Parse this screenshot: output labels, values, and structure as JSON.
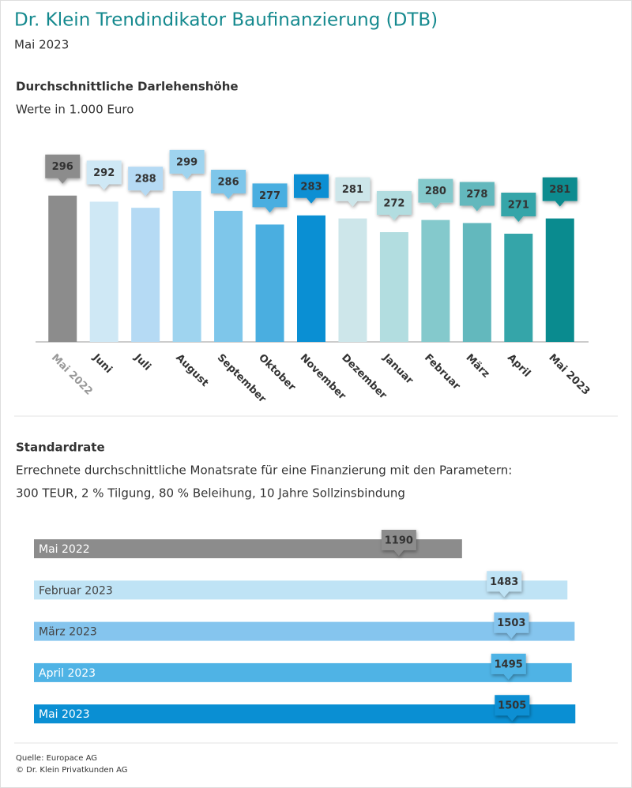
{
  "header": {
    "title": "Dr. Klein Trendindikator Baufinanzierung (DTB)",
    "subtitle": "Mai 2023"
  },
  "chart_data": [
    {
      "type": "bar",
      "title": "Durchschnittliche Darlehenshöhe",
      "subtitle": "Werte in 1.000 Euro",
      "categories": [
        "Mai 2022",
        "Juni",
        "Juli",
        "August",
        "September",
        "Oktober",
        "November",
        "Dezember",
        "Januar",
        "Februar",
        "März",
        "April",
        "Mai 2023"
      ],
      "values": [
        296,
        292,
        288,
        299,
        286,
        277,
        283,
        281,
        272,
        280,
        278,
        271,
        281
      ],
      "colors": [
        "#8c8c8c",
        "#cfe8f5",
        "#b5daf4",
        "#9fd4ef",
        "#7ec6ea",
        "#4aaee0",
        "#0a8fd3",
        "#cde6ea",
        "#b2dde0",
        "#84c9cc",
        "#63b8bd",
        "#35a5a9",
        "#0a8b8f"
      ],
      "ylim": [
        200,
        300
      ]
    },
    {
      "type": "hbar",
      "title": "Standardrate",
      "description": [
        "Errechnete durchschnittliche Monatsrate für eine Finanzierung mit den Parametern:",
        "300 TEUR, 2 % Tilgung, 80 % Beleihung, 10 Jahre Sollzinsbindung"
      ],
      "categories": [
        "Mai 2022",
        "Februar 2023",
        "März 2023",
        "April 2023",
        "Mai 2023"
      ],
      "values": [
        1190,
        1483,
        1503,
        1495,
        1505
      ],
      "colors": [
        "#8c8c8c",
        "#bfe3f5",
        "#85c5ee",
        "#4fb3e5",
        "#0a8fd3"
      ],
      "xlim": [
        0,
        1500
      ]
    }
  ],
  "footer": [
    "Quelle: Europace AG",
    "© Dr. Klein Privatkunden AG"
  ]
}
